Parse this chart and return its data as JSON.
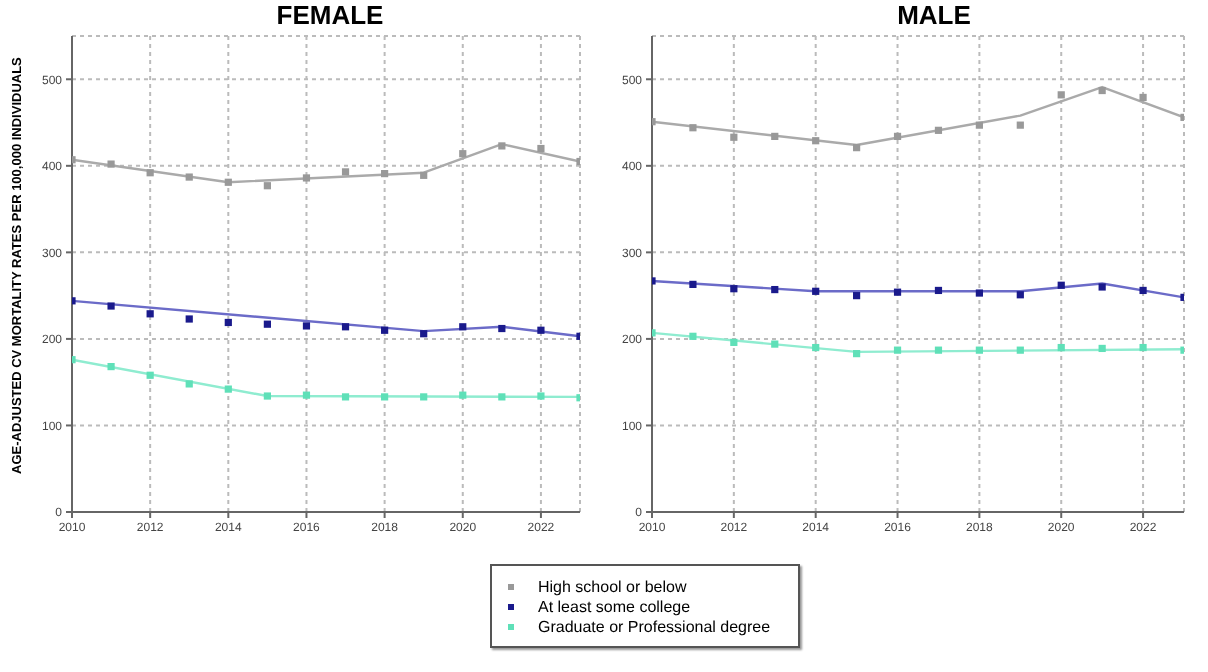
{
  "chart_data": [
    {
      "type": "scatter",
      "title": "FEMALE",
      "ylabel": "AGE-ADJUSTED CV MORTALITY RATES PER 100,000 INDIVIDUALS",
      "x": [
        2010,
        2011,
        2012,
        2013,
        2014,
        2015,
        2016,
        2017,
        2018,
        2019,
        2020,
        2021,
        2022,
        2023
      ],
      "xlim": [
        2010,
        2023
      ],
      "xticks": [
        2010,
        2012,
        2014,
        2016,
        2018,
        2020,
        2022
      ],
      "ylim": [
        0,
        550
      ],
      "yticks": [
        0,
        100,
        200,
        300,
        400,
        500
      ],
      "grid": true,
      "marker": "square",
      "legend": "bottom",
      "series": [
        {
          "name": "High school or below",
          "color": "#999999",
          "values": [
            407,
            402,
            392,
            387,
            381,
            377,
            386,
            393,
            391,
            389,
            414,
            423,
            420,
            405
          ]
        },
        {
          "name": "At least some college",
          "color": "#1a1a8c",
          "values": [
            244,
            238,
            229,
            223,
            219,
            217,
            215,
            214,
            210,
            206,
            214,
            212,
            210,
            203
          ]
        },
        {
          "name": "Graduate or Professional degree",
          "color": "#5fe0b8",
          "values": [
            176,
            168,
            158,
            148,
            142,
            134,
            135,
            133,
            133,
            133,
            135,
            133,
            134,
            132
          ]
        },
        {
          "type": "line",
          "marker": "none",
          "color": "#aaaaaa",
          "x": [
            2010,
            2014,
            2019,
            2021,
            2023
          ],
          "values": [
            407,
            381,
            392,
            425,
            405
          ]
        },
        {
          "type": "line",
          "marker": "none",
          "color": "#6b6bc8",
          "x": [
            2010,
            2019,
            2021,
            2023
          ],
          "values": [
            244,
            209,
            214,
            203
          ]
        },
        {
          "type": "line",
          "marker": "none",
          "color": "#8fecd0",
          "x": [
            2010,
            2015,
            2023
          ],
          "values": [
            176,
            134,
            133
          ]
        }
      ]
    },
    {
      "type": "scatter",
      "title": "MALE",
      "x": [
        2010,
        2011,
        2012,
        2013,
        2014,
        2015,
        2016,
        2017,
        2018,
        2019,
        2020,
        2021,
        2022,
        2023
      ],
      "xlim": [
        2010,
        2023
      ],
      "xticks": [
        2010,
        2012,
        2014,
        2016,
        2018,
        2020,
        2022
      ],
      "ylim": [
        0,
        550
      ],
      "yticks": [
        0,
        100,
        200,
        300,
        400,
        500
      ],
      "grid": true,
      "marker": "square",
      "series": [
        {
          "color": "#999999",
          "values": [
            451,
            444,
            433,
            434,
            429,
            421,
            434,
            441,
            447,
            447,
            482,
            487,
            479,
            456
          ]
        },
        {
          "color": "#1a1a8c",
          "values": [
            267,
            263,
            258,
            257,
            255,
            250,
            254,
            256,
            253,
            251,
            262,
            260,
            256,
            248
          ]
        },
        {
          "color": "#5fe0b8",
          "values": [
            207,
            203,
            196,
            194,
            190,
            183,
            187,
            187,
            187,
            187,
            190,
            189,
            190,
            187
          ]
        },
        {
          "type": "line",
          "marker": "none",
          "color": "#aaaaaa",
          "x": [
            2010,
            2015,
            2019,
            2021,
            2023
          ],
          "values": [
            451,
            424,
            458,
            491,
            456
          ]
        },
        {
          "type": "line",
          "marker": "none",
          "color": "#6b6bc8",
          "x": [
            2010,
            2014,
            2019,
            2021,
            2023
          ],
          "values": [
            267,
            255,
            255,
            264,
            248
          ]
        },
        {
          "type": "line",
          "marker": "none",
          "color": "#8fecd0",
          "x": [
            2010,
            2015,
            2023
          ],
          "values": [
            207,
            185,
            188
          ]
        }
      ]
    }
  ]
}
